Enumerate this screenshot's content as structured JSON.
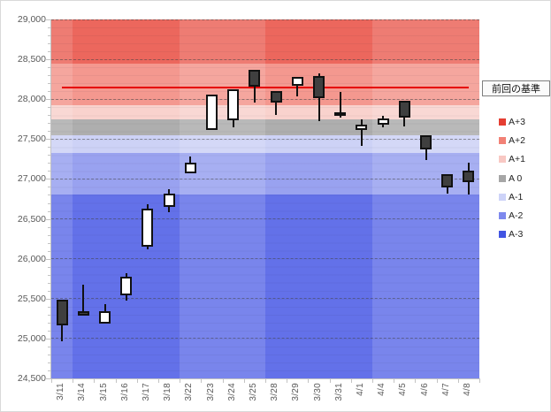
{
  "chart_data": {
    "type": "candlestick",
    "title": "",
    "xlabel": "",
    "ylabel": "",
    "categories": [
      "3/11",
      "3/14",
      "3/15",
      "3/16",
      "3/17",
      "3/18",
      "3/22",
      "3/23",
      "3/24",
      "3/25",
      "3/28",
      "3/29",
      "3/30",
      "3/31",
      "4/1",
      "4/4",
      "4/5",
      "4/6",
      "4/7",
      "4/8"
    ],
    "y_axis": {
      "min": 24500,
      "max": 29000,
      "step": 500,
      "minor_step": 100,
      "tick_labels": [
        "29,000",
        "28,500",
        "28,000",
        "27,500",
        "27,000",
        "26,500",
        "26,000",
        "25,500",
        "25,000",
        "24,500"
      ]
    },
    "grid": "dashed-horizontal",
    "legend_position": "right",
    "baseline": {
      "label": "前回の基準",
      "value": 28150,
      "color": "#e60000"
    },
    "bands": [
      {
        "name": "A+3",
        "from": 28450,
        "to": 29000,
        "color": "#ec675d"
      },
      {
        "name": "A+2",
        "from": 27920,
        "to": 28450,
        "color": "#f4988f"
      },
      {
        "name": "A+1",
        "from": 27750,
        "to": 27920,
        "color": "#f9d2cd"
      },
      {
        "name": "A 0",
        "from": 27550,
        "to": 27750,
        "color": "#aeaeae"
      },
      {
        "name": "A-1",
        "from": 27330,
        "to": 27550,
        "color": "#cdd2f6"
      },
      {
        "name": "A-2",
        "from": 26800,
        "to": 27330,
        "color": "#99a2f0"
      },
      {
        "name": "A-3",
        "from": 24500,
        "to": 26800,
        "color": "#6371e9"
      }
    ],
    "week_stripes": [
      {
        "from_col": 0,
        "to_col": 1,
        "tone": "light"
      },
      {
        "from_col": 1,
        "to_col": 6,
        "tone": "dark"
      },
      {
        "from_col": 6,
        "to_col": 10,
        "tone": "light"
      },
      {
        "from_col": 10,
        "to_col": 15,
        "tone": "dark"
      },
      {
        "from_col": 15,
        "to_col": 20,
        "tone": "light"
      }
    ],
    "series": [
      {
        "date": "3/11",
        "open": 25490,
        "high": 25490,
        "low": 24970,
        "close": 25160,
        "direction": "down"
      },
      {
        "date": "3/14",
        "open": 25340,
        "high": 25670,
        "low": 25290,
        "close": 25290,
        "direction": "down"
      },
      {
        "date": "3/15",
        "open": 25190,
        "high": 25430,
        "low": 25190,
        "close": 25340,
        "direction": "up"
      },
      {
        "date": "3/16",
        "open": 25540,
        "high": 25820,
        "low": 25470,
        "close": 25770,
        "direction": "up"
      },
      {
        "date": "3/17",
        "open": 26150,
        "high": 26680,
        "low": 26120,
        "close": 26630,
        "direction": "up"
      },
      {
        "date": "3/18",
        "open": 26650,
        "high": 26870,
        "low": 26580,
        "close": 26820,
        "direction": "up"
      },
      {
        "date": "3/22",
        "open": 27070,
        "high": 27280,
        "low": 27070,
        "close": 27200,
        "direction": "up"
      },
      {
        "date": "3/23",
        "open": 27610,
        "high": 28060,
        "low": 27610,
        "close": 28060,
        "direction": "up"
      },
      {
        "date": "3/24",
        "open": 27740,
        "high": 28120,
        "low": 27650,
        "close": 28120,
        "direction": "up"
      },
      {
        "date": "3/25",
        "open": 28370,
        "high": 28370,
        "low": 27960,
        "close": 28160,
        "direction": "down"
      },
      {
        "date": "3/28",
        "open": 28100,
        "high": 28100,
        "low": 27800,
        "close": 27960,
        "direction": "down"
      },
      {
        "date": "3/29",
        "open": 28170,
        "high": 28280,
        "low": 28040,
        "close": 28280,
        "direction": "up"
      },
      {
        "date": "3/30",
        "open": 28290,
        "high": 28320,
        "low": 27730,
        "close": 28010,
        "direction": "down"
      },
      {
        "date": "3/31",
        "open": 27840,
        "high": 28090,
        "low": 27770,
        "close": 27810,
        "direction": "down"
      },
      {
        "date": "4/1",
        "open": 27610,
        "high": 27750,
        "low": 27410,
        "close": 27680,
        "direction": "up"
      },
      {
        "date": "4/4",
        "open": 27680,
        "high": 27790,
        "low": 27650,
        "close": 27760,
        "direction": "up"
      },
      {
        "date": "4/5",
        "open": 27980,
        "high": 27980,
        "low": 27660,
        "close": 27770,
        "direction": "down"
      },
      {
        "date": "4/6",
        "open": 27550,
        "high": 27550,
        "low": 27240,
        "close": 27370,
        "direction": "down"
      },
      {
        "date": "4/7",
        "open": 27060,
        "high": 27060,
        "low": 26820,
        "close": 26890,
        "direction": "down"
      },
      {
        "date": "4/8",
        "open": 27110,
        "high": 27200,
        "low": 26800,
        "close": 26960,
        "direction": "down"
      }
    ]
  },
  "legend": {
    "items": [
      {
        "label": "A+3",
        "color": "#e53e32"
      },
      {
        "label": "A+2",
        "color": "#f28176"
      },
      {
        "label": "A+1",
        "color": "#f8c8c3"
      },
      {
        "label": "A 0",
        "color": "#a6a6a6"
      },
      {
        "label": "A-1",
        "color": "#cdd3f8"
      },
      {
        "label": "A-2",
        "color": "#7e89ee"
      },
      {
        "label": "A-3",
        "color": "#4255e2"
      }
    ]
  }
}
